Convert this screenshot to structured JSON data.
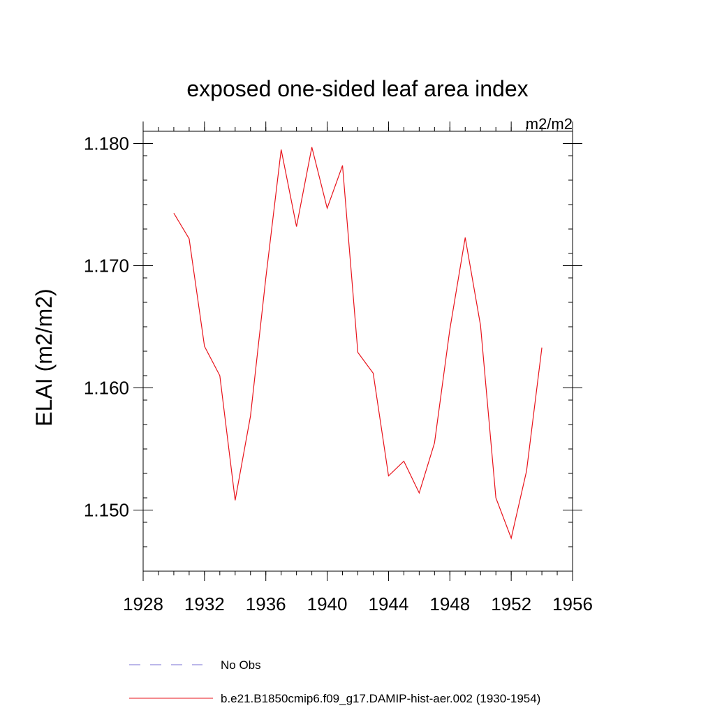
{
  "chart_data": {
    "type": "line",
    "title": "exposed one-sided leaf area index",
    "units_label": "m2/m2",
    "ylabel": "ELAI  (m2/m2)",
    "xlabel": "",
    "xlim": [
      1928,
      1956
    ],
    "ylim": [
      1.145,
      1.181
    ],
    "x_ticks": [
      1928,
      1932,
      1936,
      1940,
      1944,
      1948,
      1952,
      1956
    ],
    "x_minor_step": 1,
    "y_ticks": [
      1.15,
      1.16,
      1.17,
      1.18
    ],
    "y_minor_step": 0.002,
    "grid": false,
    "legend_position": "bottom",
    "series": [
      {
        "name": "No Obs",
        "color": "#7a6fd6",
        "dash": "dashed",
        "x": [],
        "y": []
      },
      {
        "name": "b.e21.B1850cmip6.f09_g17.DAMIP-hist-aer.002 (1930-1954)",
        "color": "#e8141c",
        "dash": "solid",
        "x": [
          1930,
          1931,
          1932,
          1933,
          1934,
          1935,
          1936,
          1937,
          1938,
          1939,
          1940,
          1941,
          1942,
          1943,
          1944,
          1945,
          1946,
          1947,
          1948,
          1949,
          1950,
          1951,
          1952,
          1953,
          1954
        ],
        "y": [
          1.1743,
          1.1722,
          1.1634,
          1.161,
          1.1508,
          1.1577,
          1.169,
          1.1795,
          1.1732,
          1.1797,
          1.1747,
          1.1782,
          1.1629,
          1.1612,
          1.1528,
          1.154,
          1.1514,
          1.1555,
          1.1648,
          1.1723,
          1.1651,
          1.151,
          1.1477,
          1.1532,
          1.1633
        ]
      }
    ]
  }
}
